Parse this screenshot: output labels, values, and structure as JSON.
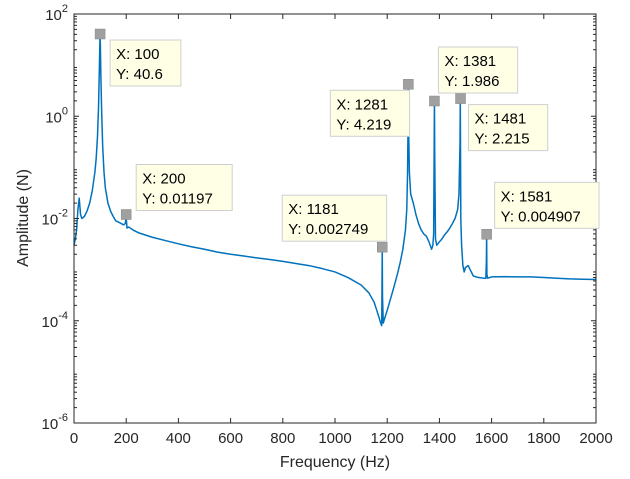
{
  "chart_data": {
    "type": "line",
    "title": "",
    "xlabel": "Frequency (Hz)",
    "ylabel": "Amplitude (N)",
    "xlim": [
      0,
      2000
    ],
    "ylim": [
      1e-06,
      100
    ],
    "yscale": "log",
    "grid": false,
    "line_color": "#0072BD",
    "x_ticks": [
      {
        "value": 0,
        "label": "0"
      },
      {
        "value": 200,
        "label": "200"
      },
      {
        "value": 400,
        "label": "400"
      },
      {
        "value": 600,
        "label": "600"
      },
      {
        "value": 800,
        "label": "800"
      },
      {
        "value": 1000,
        "label": "1000"
      },
      {
        "value": 1200,
        "label": "1200"
      },
      {
        "value": 1400,
        "label": "1400"
      },
      {
        "value": 1600,
        "label": "1600"
      },
      {
        "value": 1800,
        "label": "1800"
      },
      {
        "value": 2000,
        "label": "2000"
      }
    ],
    "y_ticks": [
      {
        "value": 1e-06,
        "base": "10",
        "exp": "-6"
      },
      {
        "value": 0.0001,
        "base": "10",
        "exp": "-4"
      },
      {
        "value": 0.01,
        "base": "10",
        "exp": "-2"
      },
      {
        "value": 1,
        "base": "10",
        "exp": "0"
      },
      {
        "value": 100,
        "base": "10",
        "exp": "2"
      }
    ],
    "series": [
      {
        "x": [
          0,
          5,
          10,
          15,
          20,
          25,
          30,
          40,
          50,
          60,
          70,
          80,
          85,
          90,
          94,
          97,
          99,
          100,
          101,
          103,
          106,
          110,
          115,
          120,
          130,
          140,
          150,
          160,
          170,
          180,
          190,
          197,
          199,
          200,
          201,
          203,
          210,
          230,
          250,
          300,
          350,
          400,
          450,
          500,
          550,
          600,
          650,
          700,
          750,
          800,
          850,
          900,
          950,
          1000,
          1050,
          1100,
          1130,
          1150,
          1160,
          1170,
          1175,
          1179,
          1180,
          1181,
          1182,
          1185,
          1190,
          1200,
          1210,
          1220,
          1230,
          1240,
          1250,
          1260,
          1270,
          1275,
          1278,
          1280,
          1281,
          1282,
          1285,
          1290,
          1300,
          1310,
          1320,
          1330,
          1340,
          1350,
          1360,
          1370,
          1375,
          1378,
          1380,
          1381,
          1382,
          1385,
          1390,
          1400,
          1410,
          1420,
          1430,
          1440,
          1450,
          1460,
          1470,
          1475,
          1479,
          1480,
          1481,
          1482,
          1485,
          1490,
          1495,
          1500,
          1510,
          1530,
          1550,
          1570,
          1578,
          1580,
          1581,
          1582,
          1585,
          1600,
          1650,
          1700,
          1750,
          1800,
          1850,
          1900,
          1950,
          2000
        ],
        "y": [
          0.003,
          0.004,
          0.006,
          0.015,
          0.025,
          0.012,
          0.01,
          0.011,
          0.014,
          0.02,
          0.035,
          0.08,
          0.15,
          0.4,
          1.5,
          8,
          25,
          40.6,
          25,
          6,
          1.2,
          0.25,
          0.08,
          0.04,
          0.02,
          0.014,
          0.011,
          0.009,
          0.0085,
          0.008,
          0.0075,
          0.008,
          0.011,
          0.01197,
          0.009,
          0.0065,
          0.0068,
          0.0058,
          0.0052,
          0.0043,
          0.0037,
          0.0032,
          0.0028,
          0.0025,
          0.0022,
          0.002,
          0.00185,
          0.0017,
          0.00158,
          0.00145,
          0.00132,
          0.0012,
          0.00105,
          0.0009,
          0.0007,
          0.0005,
          0.00035,
          0.00023,
          0.00016,
          0.00011,
          9e-05,
          8e-05,
          0.0004,
          0.002749,
          0.0003,
          9e-05,
          0.00011,
          0.00016,
          0.00024,
          0.00036,
          0.00055,
          0.00085,
          0.0014,
          0.0025,
          0.006,
          0.015,
          0.08,
          0.8,
          4.219,
          0.6,
          0.08,
          0.03,
          0.02,
          0.012,
          0.008,
          0.006,
          0.005,
          0.0045,
          0.0035,
          0.0025,
          0.003,
          0.005,
          0.3,
          1.986,
          0.2,
          0.004,
          0.003,
          0.0035,
          0.004,
          0.0048,
          0.0055,
          0.0065,
          0.008,
          0.01,
          0.015,
          0.03,
          0.3,
          2.215,
          0.2,
          0.01,
          0.003,
          0.0012,
          0.0009,
          0.0011,
          0.0012,
          0.00075,
          0.0007,
          0.00068,
          0.00068,
          0.0015,
          0.004907,
          0.0008,
          0.00068,
          0.00072,
          0.00073,
          0.00072,
          0.00072,
          0.0007,
          0.00068,
          0.00066,
          0.00065,
          0.00064
        ]
      }
    ],
    "annotations": [
      {
        "x": 100,
        "y": 40.6,
        "label_x": "X: 100",
        "label_y": "Y: 40.6"
      },
      {
        "x": 200,
        "y": 0.01197,
        "label_x": "X: 200",
        "label_y": "Y: 0.01197"
      },
      {
        "x": 1181,
        "y": 0.002749,
        "label_x": "X: 1181",
        "label_y": "Y: 0.002749"
      },
      {
        "x": 1281,
        "y": 4.219,
        "label_x": "X: 1281",
        "label_y": "Y: 4.219"
      },
      {
        "x": 1381,
        "y": 1.986,
        "label_x": "X: 1381",
        "label_y": "Y: 1.986"
      },
      {
        "x": 1481,
        "y": 2.215,
        "label_x": "X: 1481",
        "label_y": "Y: 2.215"
      },
      {
        "x": 1581,
        "y": 0.004907,
        "label_x": "X: 1581",
        "label_y": "Y: 0.004907"
      }
    ]
  }
}
